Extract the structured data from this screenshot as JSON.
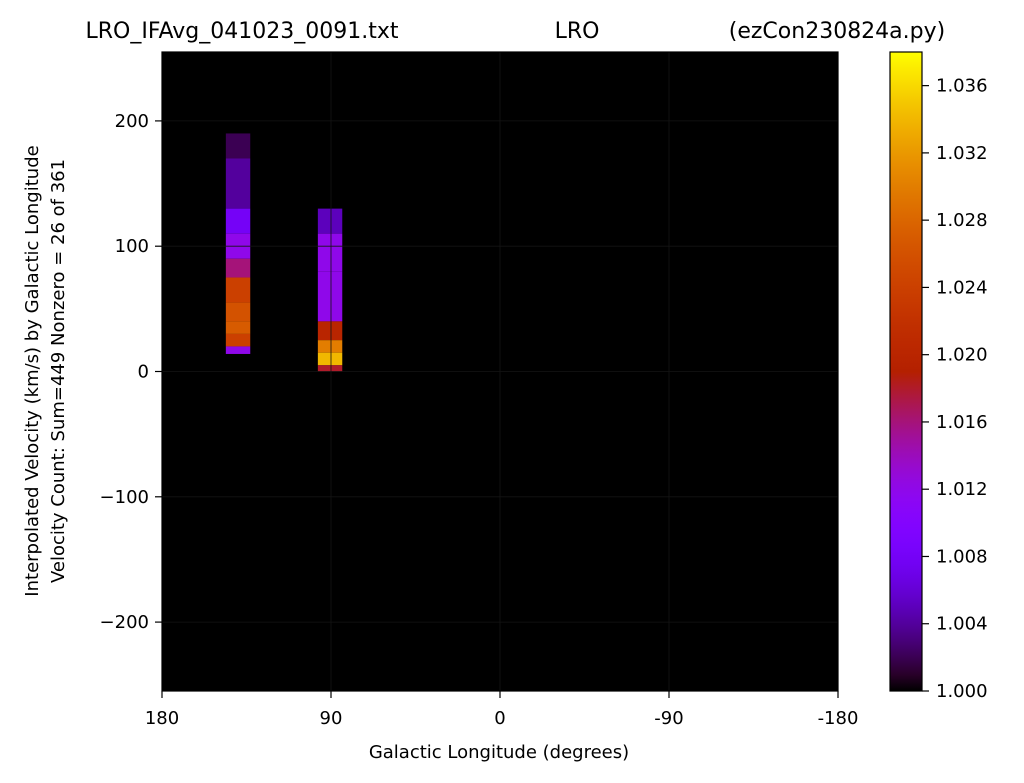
{
  "chart_data": {
    "type": "heatmap",
    "title": {
      "left": "LRO_IFAvg_041023_0091.txt",
      "center": "LRO",
      "right": "(ezCon230824a.py)"
    },
    "xlabel": "Galactic Longitude (degrees)",
    "ylabel_line1": "Interpolated Velocity (km/s) by Galactic Longitude",
    "ylabel_line2": "Velocity Count: Sum=449 Nonzero = 26 of 361",
    "xlim": [
      180,
      -180
    ],
    "ylim": [
      -255,
      255
    ],
    "xticks": [
      {
        "value": 180,
        "label": "180"
      },
      {
        "value": 90,
        "label": "90"
      },
      {
        "value": 0,
        "label": "0"
      },
      {
        "value": -90,
        "label": "-90"
      },
      {
        "value": -180,
        "label": "-180"
      }
    ],
    "yticks": [
      {
        "value": 200,
        "label": "200"
      },
      {
        "value": 100,
        "label": "100"
      },
      {
        "value": 0,
        "label": "0"
      },
      {
        "value": -100,
        "label": "−100"
      },
      {
        "value": -200,
        "label": "−200"
      }
    ],
    "grid": true,
    "background_value": 1.0,
    "colorbar": {
      "colormap": "gnuplot",
      "min": 1.0,
      "max": 1.038,
      "ticks": [
        {
          "value": 1.0,
          "label": "1.000"
        },
        {
          "value": 1.004,
          "label": "1.004"
        },
        {
          "value": 1.008,
          "label": "1.008"
        },
        {
          "value": 1.012,
          "label": "1.012"
        },
        {
          "value": 1.016,
          "label": "1.016"
        },
        {
          "value": 1.02,
          "label": "1.020"
        },
        {
          "value": 1.024,
          "label": "1.024"
        },
        {
          "value": 1.028,
          "label": "1.028"
        },
        {
          "value": 1.032,
          "label": "1.032"
        },
        {
          "value": 1.036,
          "label": "1.036"
        }
      ]
    },
    "cells": [
      {
        "x0": 146,
        "x1": 133,
        "y0": 170,
        "y1": 190,
        "value": 1.002
      },
      {
        "x0": 146,
        "x1": 133,
        "y0": 130,
        "y1": 170,
        "value": 1.004
      },
      {
        "x0": 146,
        "x1": 133,
        "y0": 110,
        "y1": 130,
        "value": 1.008
      },
      {
        "x0": 146,
        "x1": 133,
        "y0": 90,
        "y1": 110,
        "value": 1.012
      },
      {
        "x0": 146,
        "x1": 133,
        "y0": 75,
        "y1": 90,
        "value": 1.016
      },
      {
        "x0": 146,
        "x1": 133,
        "y0": 55,
        "y1": 75,
        "value": 1.024
      },
      {
        "x0": 146,
        "x1": 133,
        "y0": 40,
        "y1": 55,
        "value": 1.026
      },
      {
        "x0": 146,
        "x1": 133,
        "y0": 30,
        "y1": 40,
        "value": 1.027
      },
      {
        "x0": 146,
        "x1": 133,
        "y0": 20,
        "y1": 30,
        "value": 1.024
      },
      {
        "x0": 146,
        "x1": 133,
        "y0": 14,
        "y1": 20,
        "value": 1.012
      },
      {
        "x0": 97,
        "x1": 84,
        "y0": 110,
        "y1": 130,
        "value": 1.005
      },
      {
        "x0": 97,
        "x1": 84,
        "y0": 80,
        "y1": 110,
        "value": 1.012
      },
      {
        "x0": 97,
        "x1": 84,
        "y0": 40,
        "y1": 80,
        "value": 1.012
      },
      {
        "x0": 97,
        "x1": 84,
        "y0": 25,
        "y1": 40,
        "value": 1.02
      },
      {
        "x0": 97,
        "x1": 84,
        "y0": 15,
        "y1": 25,
        "value": 1.03
      },
      {
        "x0": 97,
        "x1": 84,
        "y0": 5,
        "y1": 15,
        "value": 1.034
      },
      {
        "x0": 97,
        "x1": 84,
        "y0": 0,
        "y1": 5,
        "value": 1.018
      }
    ]
  }
}
